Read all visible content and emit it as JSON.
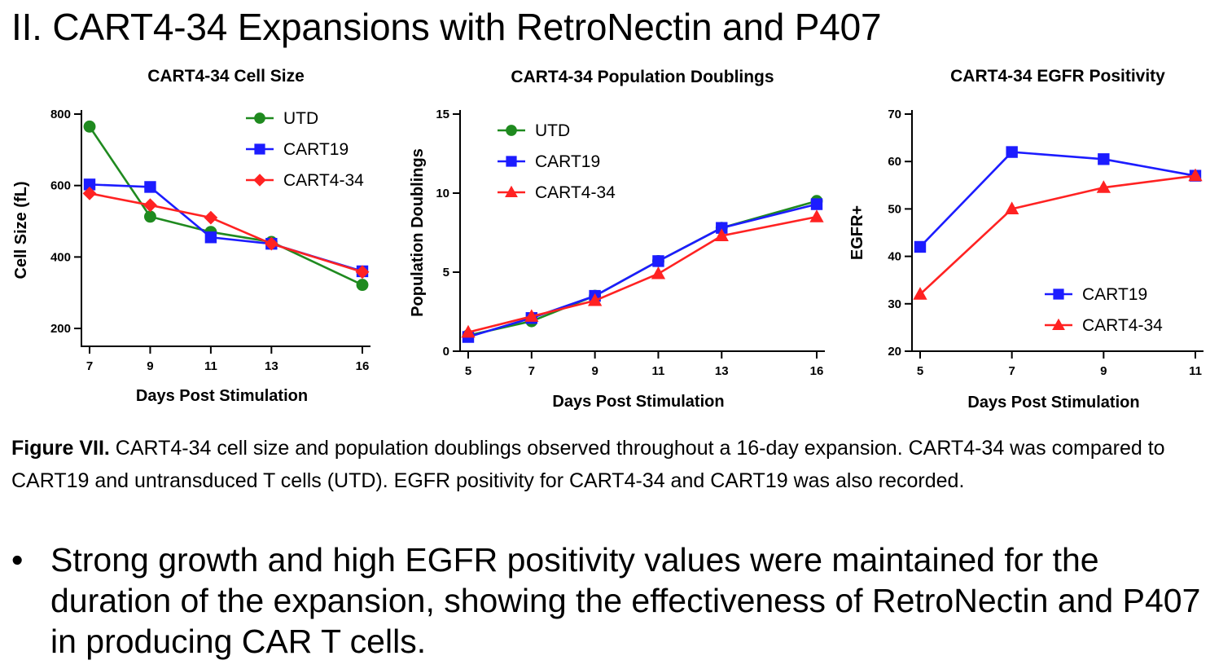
{
  "page": {
    "title": "II. CART4-34 Expansions with RetroNectin and P407"
  },
  "colors": {
    "UTD": "#1f8a1f",
    "CART19": "#1c1cff",
    "CART4-34": "#ff2222"
  },
  "chart_data": [
    {
      "type": "line",
      "title": "CART4-34 Cell Size",
      "xlabel": "Days Post Stimulation",
      "ylabel": "Cell  Size (fL)",
      "x_ticks": [
        7,
        9,
        11,
        13,
        16
      ],
      "x_tick_labels": [
        "7",
        "9",
        "11",
        "13",
        "16"
      ],
      "xlim": [
        7,
        16
      ],
      "y_ticks": [
        200,
        400,
        600,
        800
      ],
      "y_tick_labels": [
        "200",
        "400",
        "600",
        "800"
      ],
      "ylim": [
        150,
        800
      ],
      "legend_position": "top-right",
      "series": [
        {
          "name": "UTD",
          "marker": "circle",
          "x": [
            7,
            9,
            11,
            13,
            16
          ],
          "values": [
            765,
            513,
            470,
            442,
            322
          ]
        },
        {
          "name": "CART19",
          "marker": "square",
          "x": [
            7,
            9,
            11,
            13,
            16
          ],
          "values": [
            603,
            596,
            455,
            437,
            360
          ]
        },
        {
          "name": "CART4-34",
          "marker": "diamond",
          "x": [
            7,
            9,
            11,
            13,
            16
          ],
          "values": [
            578,
            545,
            510,
            437,
            358
          ]
        }
      ]
    },
    {
      "type": "line",
      "title": "CART4-34 Population Doublings",
      "xlabel": "Days Post Stimulation",
      "ylabel": "Population Doublings",
      "x_ticks": [
        5,
        7,
        9,
        11,
        13,
        16
      ],
      "x_tick_labels": [
        "5",
        "7",
        "9",
        "11",
        "13",
        "16"
      ],
      "xlim": [
        5,
        16
      ],
      "y_ticks": [
        0,
        5,
        10,
        15
      ],
      "y_tick_labels": [
        "0",
        "5",
        "10",
        "15"
      ],
      "ylim": [
        0,
        15
      ],
      "legend_position": "top-left",
      "series": [
        {
          "name": "UTD",
          "marker": "circle",
          "x": [
            5,
            7,
            9,
            11,
            13,
            16
          ],
          "values": [
            1.0,
            1.9,
            3.5,
            5.7,
            7.8,
            9.5
          ]
        },
        {
          "name": "CART19",
          "marker": "square",
          "x": [
            5,
            7,
            9,
            11,
            13,
            16
          ],
          "values": [
            0.9,
            2.1,
            3.5,
            5.7,
            7.8,
            9.3
          ]
        },
        {
          "name": "CART4-34",
          "marker": "triangle",
          "x": [
            5,
            7,
            9,
            11,
            13,
            16
          ],
          "values": [
            1.2,
            2.2,
            3.2,
            4.9,
            7.3,
            8.5
          ]
        }
      ]
    },
    {
      "type": "line",
      "title": "CART4-34 EGFR Positivity",
      "xlabel": "Days Post Stimulation",
      "ylabel": "EGFR+",
      "x_ticks": [
        5,
        7,
        9,
        11
      ],
      "x_tick_labels": [
        "5",
        "7",
        "9",
        "11"
      ],
      "xlim": [
        5,
        11
      ],
      "y_ticks": [
        20,
        30,
        40,
        50,
        60,
        70
      ],
      "y_tick_labels": [
        "20",
        "30",
        "40",
        "50",
        "60",
        "70"
      ],
      "ylim": [
        20,
        70
      ],
      "legend_position": "bottom-right",
      "series": [
        {
          "name": "CART19",
          "marker": "square",
          "x": [
            5,
            7,
            9,
            11
          ],
          "values": [
            42,
            62,
            60.5,
            57
          ]
        },
        {
          "name": "CART4-34",
          "marker": "triangle",
          "x": [
            5,
            7,
            9,
            11
          ],
          "values": [
            32,
            50,
            54.5,
            57
          ]
        }
      ]
    }
  ],
  "caption": {
    "lead": "Figure VII.",
    "text": " CART4-34 cell size and population doublings observed throughout a 16-day expansion. CART4-34 was compared to CART19 and untransduced T cells (UTD). EGFR positivity for CART4-34 and CART19 was also recorded."
  },
  "bullet": {
    "symbol": "•",
    "text": "Strong growth and high EGFR positivity values were maintained for the duration of the expansion, showing the effectiveness of RetroNectin and P407 in producing CAR T cells."
  }
}
